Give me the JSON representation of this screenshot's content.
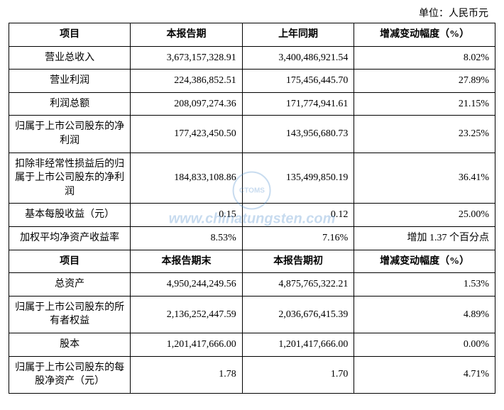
{
  "unit_label": "单位：人民币元",
  "section1": {
    "headers": [
      "项目",
      "本报告期",
      "上年同期",
      "增减变动幅度（%）"
    ],
    "rows": [
      {
        "label": "营业总收入",
        "current": "3,673,157,328.91",
        "prior": "3,400,486,921.54",
        "change": "8.02%"
      },
      {
        "label": "营业利润",
        "current": "224,386,852.51",
        "prior": "175,456,445.70",
        "change": "27.89%"
      },
      {
        "label": "利润总额",
        "current": "208,097,274.36",
        "prior": "171,774,941.61",
        "change": "21.15%"
      },
      {
        "label": "归属于上市公司股东的净利润",
        "current": "177,423,450.50",
        "prior": "143,956,680.73",
        "change": "23.25%"
      },
      {
        "label": "扣除非经常性损益后的归属于上市公司股东的净利润",
        "current": "184,833,108.86",
        "prior": "135,499,850.19",
        "change": "36.41%"
      },
      {
        "label": "基本每股收益（元）",
        "current": "0.15",
        "prior": "0.12",
        "change": "25.00%"
      },
      {
        "label": "加权平均净资产收益率",
        "current": "8.53%",
        "prior": "7.16%",
        "change": "增加 1.37 个百分点"
      }
    ]
  },
  "section2": {
    "headers": [
      "项目",
      "本报告期末",
      "本报告期初",
      "增减变动幅度（%）"
    ],
    "rows": [
      {
        "label": "总资产",
        "current": "4,950,244,249.56",
        "prior": "4,875,765,322.21",
        "change": "1.53%"
      },
      {
        "label": "归属于上市公司股东的所有者权益",
        "current": "2,136,252,447.59",
        "prior": "2,036,676,415.39",
        "change": "4.89%"
      },
      {
        "label": "股本",
        "current": "1,201,417,666.00",
        "prior": "1,201,417,666.00",
        "change": "0.00%"
      },
      {
        "label": "归属于上市公司股东的每股净资产（元）",
        "current": "1.78",
        "prior": "1.70",
        "change": "4.71%"
      }
    ]
  },
  "watermark": {
    "logo_text": "CTOMS",
    "url_text": "www.chinatungsten.com"
  },
  "colors": {
    "border": "#000000",
    "text": "#000000",
    "watermark": "#4a8acb",
    "background": "#ffffff"
  }
}
